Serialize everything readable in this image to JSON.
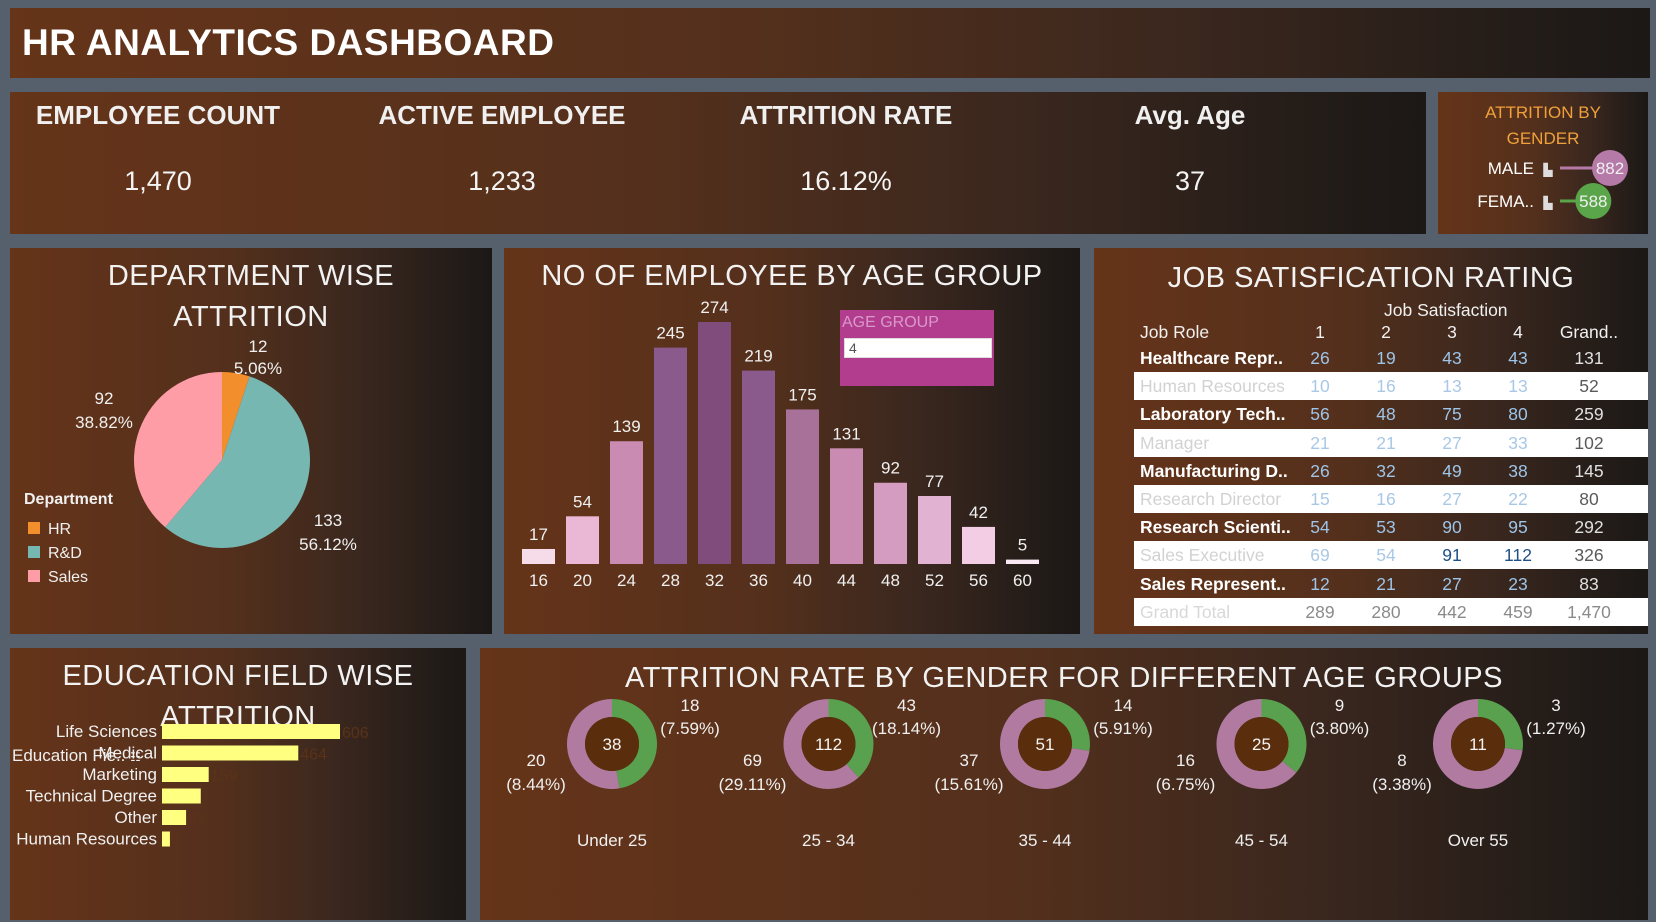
{
  "header": {
    "title": "HR ANALYTICS DASHBOARD"
  },
  "kpis": [
    {
      "label": "EMPLOYEE COUNT",
      "value": "1,470"
    },
    {
      "label": "ACTIVE EMPLOYEE",
      "value": "1,233"
    },
    {
      "label": "ATTRITION RATE",
      "value": "16.12%"
    },
    {
      "label": "Avg. Age",
      "value": "37"
    }
  ],
  "gender_panel": {
    "title_line1": "ATTRITION BY",
    "title_line2": "GENDER",
    "icon": "bar-chart-icon",
    "colors": {
      "male": "#b57aa8",
      "female": "#5aa54a",
      "title": "#f0a13b"
    }
  },
  "department_panel": {
    "title_line1": "DEPARTMENT WISE",
    "title_line2": "ATTRITION",
    "legend_title": "Department"
  },
  "age_panel": {
    "title": "NO OF EMPLOYEE BY AGE GROUP",
    "filter_label": "AGE GROUP",
    "filter_value": "4"
  },
  "job_panel": {
    "title": "JOB SATISFICATION RATING",
    "col_group": "Job Satisfaction",
    "row_header": "Job Role",
    "columns": [
      "1",
      "2",
      "3",
      "4",
      "Grand.."
    ],
    "rows": [
      {
        "role": "Healthcare Repr..",
        "vals": [
          "26",
          "19",
          "43",
          "43",
          "131"
        ],
        "style": "dark"
      },
      {
        "role": "Human Resources",
        "vals": [
          "10",
          "16",
          "13",
          "13",
          "52"
        ],
        "style": "lite"
      },
      {
        "role": "Laboratory Tech..",
        "vals": [
          "56",
          "48",
          "75",
          "80",
          "259"
        ],
        "style": "dark"
      },
      {
        "role": "Manager",
        "vals": [
          "21",
          "21",
          "27",
          "33",
          "102"
        ],
        "style": "lite"
      },
      {
        "role": "Manufacturing D..",
        "vals": [
          "26",
          "32",
          "49",
          "38",
          "145"
        ],
        "style": "dark"
      },
      {
        "role": "Research Director",
        "vals": [
          "15",
          "16",
          "27",
          "22",
          "80"
        ],
        "style": "lite"
      },
      {
        "role": "Research Scienti..",
        "vals": [
          "54",
          "53",
          "90",
          "95",
          "292"
        ],
        "style": "dark"
      },
      {
        "role": "Sales Executive",
        "vals": [
          "69",
          "54",
          "91",
          "112",
          "326"
        ],
        "style": "lite"
      },
      {
        "role": "Sales Represent..",
        "vals": [
          "12",
          "21",
          "27",
          "23",
          "83"
        ],
        "style": "dark"
      },
      {
        "role": "Grand Total",
        "vals": [
          "289",
          "280",
          "442",
          "459",
          "1,470"
        ],
        "style": "lite total"
      }
    ]
  },
  "edu_panel": {
    "title_line1": "EDUCATION FIELD WISE",
    "title_line2": "ATTRITION",
    "field_header": "Education Fie..",
    "sort_icon": "sort-icon"
  },
  "agegender_panel": {
    "title": "ATTRITION RATE BY GENDER FOR DIFFERENT AGE GROUPS"
  },
  "chart_data": [
    {
      "id": "gender",
      "type": "bar",
      "title": "ATTRITION BY GENDER",
      "categories": [
        "MALE",
        "FEMA.."
      ],
      "values": [
        882,
        588
      ],
      "value_labels": [
        "882",
        "588"
      ]
    },
    {
      "id": "department",
      "type": "pie",
      "title": "DEPARTMENT WISE ATTRITION",
      "legend_title": "Department",
      "legend_position": "bottom-left",
      "slices": [
        {
          "label": "HR",
          "value": 12,
          "pct": "5.06%",
          "color": "#f28e2b"
        },
        {
          "label": "R&D",
          "value": 133,
          "pct": "56.12%",
          "color": "#76b7b2"
        },
        {
          "label": "Sales",
          "value": 92,
          "pct": "38.82%",
          "color": "#ff9da7"
        }
      ]
    },
    {
      "id": "age",
      "type": "bar",
      "title": "NO OF EMPLOYEE BY AGE GROUP",
      "categories": [
        "16",
        "20",
        "24",
        "28",
        "32",
        "36",
        "40",
        "44",
        "48",
        "52",
        "56",
        "60"
      ],
      "values": [
        17,
        54,
        139,
        245,
        274,
        219,
        175,
        131,
        92,
        77,
        42,
        5
      ],
      "colors": [
        "#f6dbe9",
        "#eab7d4",
        "#c98bb1",
        "#8a5a8d",
        "#7f4c7b",
        "#8a5a8d",
        "#a77199",
        "#c98bb1",
        "#d39cc0",
        "#e2b2d2",
        "#f3cde3",
        "#f9e8f1"
      ],
      "ylim": [
        0,
        274
      ],
      "grid": false
    },
    {
      "id": "education",
      "type": "bar",
      "orientation": "horizontal",
      "title": "EDUCATION FIELD WISE ATTRITION",
      "categories": [
        "Life Sciences",
        "Medical",
        "Marketing",
        "Technical Degree",
        "Other",
        "Human Resources"
      ],
      "values": [
        606,
        464,
        159,
        132,
        82,
        27
      ],
      "value_labels": [
        "606",
        "464",
        "159",
        "",
        "82",
        ""
      ],
      "color": "#ffff80"
    },
    {
      "id": "age_gender",
      "type": "pie",
      "title": "ATTRITION RATE BY GENDER FOR DIFFERENT AGE GROUPS",
      "groups": [
        {
          "label": "Under 25",
          "center": "38",
          "green": {
            "value": 18,
            "pct": "(7.59%)"
          },
          "purple": {
            "value": 20,
            "pct": "(8.44%)"
          }
        },
        {
          "label": "25 - 34",
          "center": "112",
          "green": {
            "value": 43,
            "pct": "(18.14%)"
          },
          "purple": {
            "value": 69,
            "pct": "(29.11%)"
          }
        },
        {
          "label": "35 - 44",
          "center": "51",
          "green": {
            "value": 14,
            "pct": "(5.91%)"
          },
          "purple": {
            "value": 37,
            "pct": "(15.61%)"
          }
        },
        {
          "label": "45 - 54",
          "center": "25",
          "green": {
            "value": 9,
            "pct": "(3.80%)"
          },
          "purple": {
            "value": 16,
            "pct": "(6.75%)"
          }
        },
        {
          "label": "Over 55",
          "center": "11",
          "green": {
            "value": 3,
            "pct": "(1.27%)"
          },
          "purple": {
            "value": 8,
            "pct": "(3.38%)"
          }
        }
      ],
      "colors": {
        "green": "#59a14f",
        "purple": "#b07aa1",
        "center": "#5a2e0c"
      }
    }
  ]
}
